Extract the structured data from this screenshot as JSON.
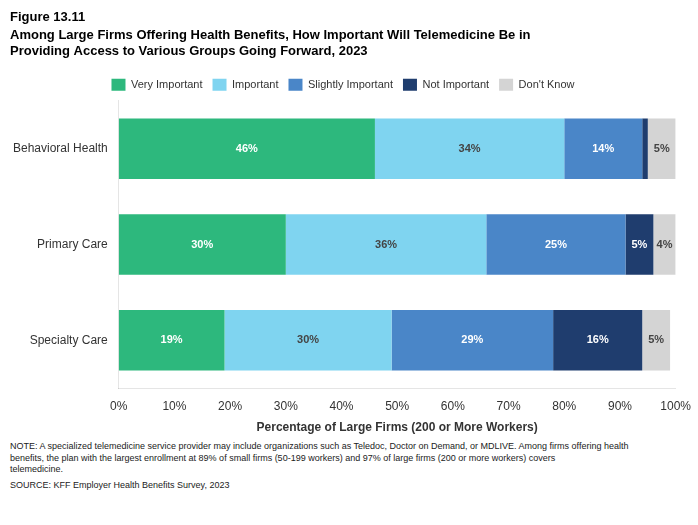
{
  "chart_data": {
    "type": "bar",
    "orientation": "horizontal",
    "stacked": true,
    "title": "Figure 13.11",
    "subtitle": "Among Large Firms Offering Health Benefits, How Important Will Telemedicine Be in\nProviding Access to Various Groups Going Forward, 2023",
    "categories": [
      "Behavioral Health",
      "Primary Care",
      "Specialty Care"
    ],
    "series": [
      {
        "name": "Very Important",
        "color": "#2db87d",
        "values": [
          46,
          30,
          19
        ],
        "value_labels": [
          "46%",
          "30%",
          "19%"
        ]
      },
      {
        "name": "Important",
        "color": "#7fd4f0",
        "values": [
          34,
          36,
          30
        ],
        "value_labels": [
          "34%",
          "36%",
          "30%"
        ]
      },
      {
        "name": "Slightly Important",
        "color": "#4a86c8",
        "values": [
          14,
          25,
          29
        ],
        "value_labels": [
          "14%",
          "25%",
          "29%"
        ]
      },
      {
        "name": "Not Important",
        "color": "#1f3d6e",
        "values": [
          1,
          5,
          16
        ],
        "value_labels": [
          null,
          "5%",
          "16%"
        ]
      },
      {
        "name": "Don't Know",
        "color": "#d4d4d4",
        "values": [
          5,
          4,
          5
        ],
        "value_labels": [
          "5%",
          "4%",
          "5%"
        ]
      }
    ],
    "xlabel": "Percentage of Large Firms (200 or More Workers)",
    "xlim": [
      0,
      100
    ],
    "xticks": [
      {
        "value": 0,
        "label": "0%"
      },
      {
        "value": 10,
        "label": "10%"
      },
      {
        "value": 20,
        "label": "20%"
      },
      {
        "value": 30,
        "label": "30%"
      },
      {
        "value": 40,
        "label": "40%"
      },
      {
        "value": 50,
        "label": "50%"
      },
      {
        "value": 60,
        "label": "60%"
      },
      {
        "value": 70,
        "label": "70%"
      },
      {
        "value": 80,
        "label": "80%"
      },
      {
        "value": 90,
        "label": "90%"
      },
      {
        "value": 100,
        "label": "100%"
      }
    ],
    "data_labels": true,
    "legend": "top",
    "grid": false,
    "annotations": [
      "NOTE: A specialized telemedicine service provider may include organizations such as Teledoc, Doctor on Demand, or MDLIVE. Among firms offering health\nbenefits, the plan with the largest enrollment at 89% of small firms (50-199 workers) and 97% of large firms (200 or more workers) covers\ntelemedicine.",
      "SOURCE: KFF Employer Health Benefits Survey, 2023"
    ]
  }
}
